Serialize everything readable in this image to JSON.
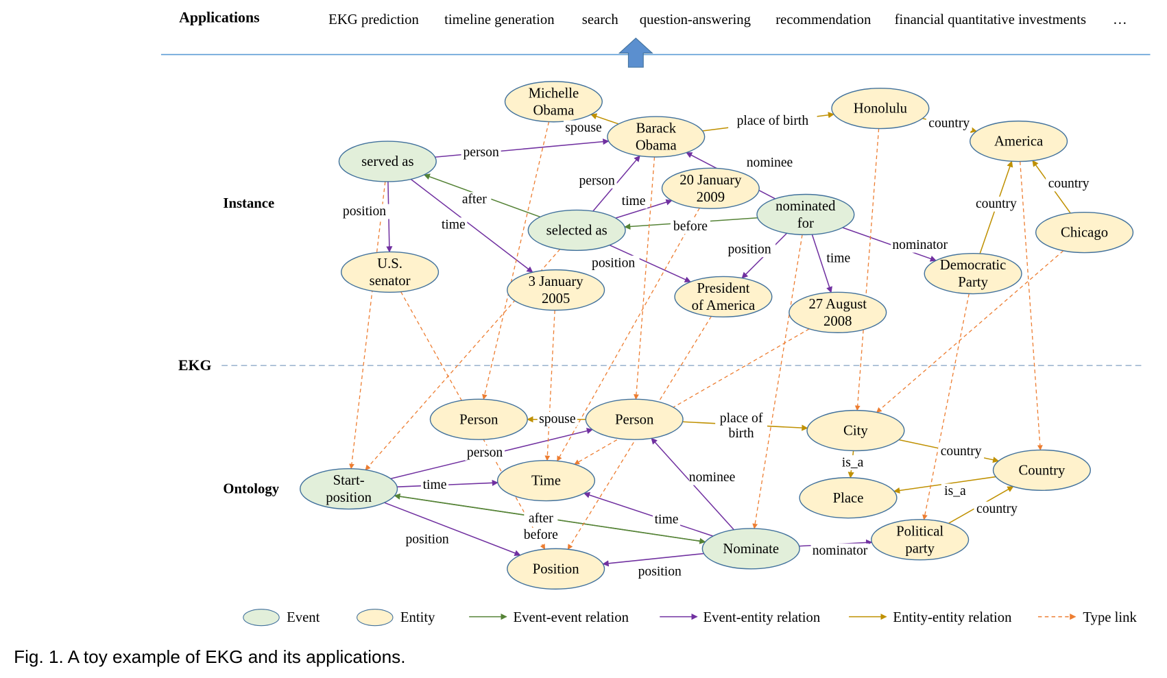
{
  "applications": {
    "label": "Applications",
    "items": [
      "EKG prediction",
      "timeline generation",
      "search",
      "question-answering",
      "recommendation",
      "financial quantitative investments",
      "…"
    ]
  },
  "layers": {
    "instance": "Instance",
    "ekg": "EKG",
    "ontology": "Ontology"
  },
  "colors": {
    "event_fill": "#e2efda",
    "entity_fill": "#fff2cc",
    "node_stroke": "#41719c",
    "event_event": "#548235",
    "event_entity": "#7030a0",
    "entity_entity": "#bf9000",
    "type_link": "#ed7d31",
    "separator": "#5b9bd5"
  },
  "nodes": [
    {
      "id": "michelle",
      "kind": "entity",
      "lines": [
        "Michelle",
        "Obama"
      ]
    },
    {
      "id": "barack",
      "kind": "entity",
      "lines": [
        "Barack",
        "Obama"
      ]
    },
    {
      "id": "honolulu",
      "kind": "entity",
      "lines": [
        "Honolulu"
      ]
    },
    {
      "id": "america",
      "kind": "entity",
      "lines": [
        "America"
      ]
    },
    {
      "id": "served",
      "kind": "event",
      "lines": [
        "served as"
      ]
    },
    {
      "id": "jan2009",
      "kind": "entity",
      "lines": [
        "20 January",
        "2009"
      ]
    },
    {
      "id": "nominated",
      "kind": "event",
      "lines": [
        "nominated",
        "for"
      ]
    },
    {
      "id": "chicago",
      "kind": "entity",
      "lines": [
        "Chicago"
      ]
    },
    {
      "id": "selected",
      "kind": "event",
      "lines": [
        "selected as"
      ]
    },
    {
      "id": "senator",
      "kind": "entity",
      "lines": [
        "U.S.",
        "senator"
      ]
    },
    {
      "id": "jan2005",
      "kind": "entity",
      "lines": [
        "3 January",
        "2005"
      ]
    },
    {
      "id": "president",
      "kind": "entity",
      "lines": [
        "President",
        "of America"
      ]
    },
    {
      "id": "aug2008",
      "kind": "entity",
      "lines": [
        "27 August",
        "2008"
      ]
    },
    {
      "id": "democratic",
      "kind": "entity",
      "lines": [
        "Democratic",
        "Party"
      ]
    },
    {
      "id": "person1",
      "kind": "entity",
      "lines": [
        "Person"
      ]
    },
    {
      "id": "person2",
      "kind": "entity",
      "lines": [
        "Person"
      ]
    },
    {
      "id": "city",
      "kind": "entity",
      "lines": [
        "City"
      ]
    },
    {
      "id": "country",
      "kind": "entity",
      "lines": [
        "Country"
      ]
    },
    {
      "id": "place",
      "kind": "entity",
      "lines": [
        "Place"
      ]
    },
    {
      "id": "start",
      "kind": "event",
      "lines": [
        "Start-",
        "position"
      ]
    },
    {
      "id": "time",
      "kind": "entity",
      "lines": [
        "Time"
      ]
    },
    {
      "id": "nominate",
      "kind": "event",
      "lines": [
        "Nominate"
      ]
    },
    {
      "id": "position",
      "kind": "entity",
      "lines": [
        "Position"
      ]
    },
    {
      "id": "political",
      "kind": "entity",
      "lines": [
        "Political",
        "party"
      ]
    }
  ],
  "edges": [
    {
      "from": "barack",
      "to": "michelle",
      "type": "entity_entity",
      "label": "spouse"
    },
    {
      "from": "served",
      "to": "barack",
      "type": "event_entity",
      "label": "person"
    },
    {
      "from": "barack",
      "to": "honolulu",
      "type": "entity_entity",
      "label": "place of birth"
    },
    {
      "from": "honolulu",
      "to": "america",
      "type": "entity_entity",
      "label": "country"
    },
    {
      "from": "nominated",
      "to": "barack",
      "type": "event_entity",
      "label": "nominee"
    },
    {
      "from": "selected",
      "to": "barack",
      "type": "event_entity",
      "label": "person"
    },
    {
      "from": "selected",
      "to": "jan2009",
      "type": "event_entity",
      "label": "time"
    },
    {
      "from": "selected",
      "to": "served",
      "type": "event_event",
      "label": "after"
    },
    {
      "from": "nominated",
      "to": "selected",
      "type": "event_event",
      "label": "before"
    },
    {
      "from": "served",
      "to": "senator",
      "type": "event_entity",
      "label": "position"
    },
    {
      "from": "served",
      "to": "jan2005",
      "type": "event_entity",
      "label": "time"
    },
    {
      "from": "selected",
      "to": "president",
      "type": "event_entity",
      "label": "position"
    },
    {
      "from": "nominated",
      "to": "president",
      "type": "event_entity",
      "label": "position"
    },
    {
      "from": "nominated",
      "to": "aug2008",
      "type": "event_entity",
      "label": "time"
    },
    {
      "from": "nominated",
      "to": "democratic",
      "type": "event_entity",
      "label": "nominator"
    },
    {
      "from": "democratic",
      "to": "america",
      "type": "entity_entity",
      "label": "country"
    },
    {
      "from": "chicago",
      "to": "america",
      "type": "entity_entity",
      "label": "country"
    },
    {
      "from": "person2",
      "to": "person1",
      "type": "entity_entity",
      "label": "spouse"
    },
    {
      "from": "start",
      "to": "person2",
      "type": "event_entity",
      "label": "person"
    },
    {
      "from": "person2",
      "to": "city",
      "type": "entity_entity",
      "label": "place of birth"
    },
    {
      "from": "city",
      "to": "country",
      "type": "entity_entity",
      "label": "country"
    },
    {
      "from": "city",
      "to": "place",
      "type": "entity_entity",
      "label": "is_a"
    },
    {
      "from": "country",
      "to": "place",
      "type": "entity_entity",
      "label": "is_a"
    },
    {
      "from": "political",
      "to": "country",
      "type": "entity_entity",
      "label": "country"
    },
    {
      "from": "start",
      "to": "time",
      "type": "event_entity",
      "label": "time"
    },
    {
      "from": "nominate",
      "to": "time",
      "type": "event_entity",
      "label": "time"
    },
    {
      "from": "nominate",
      "to": "person2",
      "type": "event_entity",
      "label": "nominee"
    },
    {
      "from": "start",
      "to": "nominate",
      "type": "event_event",
      "label": "after"
    },
    {
      "from": "nominate",
      "to": "start",
      "type": "event_event",
      "label": "before"
    },
    {
      "from": "start",
      "to": "position",
      "type": "event_entity",
      "label": "position"
    },
    {
      "from": "nominate",
      "to": "position",
      "type": "event_entity",
      "label": "position"
    },
    {
      "from": "nominate",
      "to": "political",
      "type": "event_entity",
      "label": "nominator"
    },
    {
      "from": "michelle",
      "to": "person1",
      "type": "type_link",
      "label": ""
    },
    {
      "from": "barack",
      "to": "person2",
      "type": "type_link",
      "label": ""
    },
    {
      "from": "served",
      "to": "start",
      "type": "type_link",
      "label": ""
    },
    {
      "from": "selected",
      "to": "start",
      "type": "type_link",
      "label": ""
    },
    {
      "from": "senator",
      "to": "position",
      "type": "type_link",
      "label": ""
    },
    {
      "from": "jan2005",
      "to": "time",
      "type": "type_link",
      "label": ""
    },
    {
      "from": "jan2009",
      "to": "time",
      "type": "type_link",
      "label": ""
    },
    {
      "from": "president",
      "to": "position",
      "type": "type_link",
      "label": ""
    },
    {
      "from": "nominated",
      "to": "nominate",
      "type": "type_link",
      "label": ""
    },
    {
      "from": "aug2008",
      "to": "time",
      "type": "type_link",
      "label": ""
    },
    {
      "from": "honolulu",
      "to": "city",
      "type": "type_link",
      "label": ""
    },
    {
      "from": "chicago",
      "to": "city",
      "type": "type_link",
      "label": ""
    },
    {
      "from": "america",
      "to": "country",
      "type": "type_link",
      "label": ""
    },
    {
      "from": "democratic",
      "to": "political",
      "type": "type_link",
      "label": ""
    }
  ],
  "legend": {
    "event": "Event",
    "entity": "Entity",
    "event_event": "Event-event relation",
    "event_entity": "Event-entity relation",
    "entity_entity": "Entity-entity relation",
    "type_link": "Type link"
  },
  "caption": "Fig. 1. A toy example of EKG and its applications."
}
